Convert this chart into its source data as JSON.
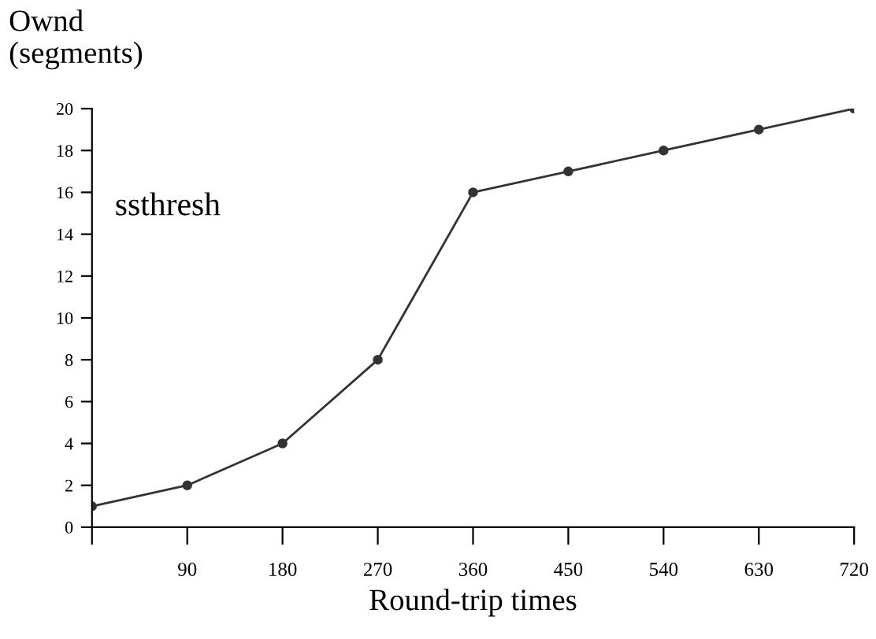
{
  "chart_data": {
    "type": "line",
    "ylabel": "Ownd\n(segments)",
    "xlabel": "Round-trip times",
    "annotations": [
      "ssthresh"
    ],
    "x": [
      0,
      90,
      180,
      270,
      360,
      450,
      540,
      630,
      720
    ],
    "series": [
      {
        "color": "#333333",
        "values": [
          1,
          2,
          4,
          8,
          16,
          17,
          18,
          19,
          20
        ]
      }
    ],
    "xlim": [
      0,
      720
    ],
    "ylim": [
      0,
      20
    ],
    "xticks": [
      {
        "value": 0,
        "label": null
      },
      90,
      180,
      270,
      360,
      450,
      540,
      630,
      720
    ],
    "yticks": [
      0,
      2,
      4,
      6,
      8,
      10,
      12,
      14,
      16,
      18,
      20
    ],
    "grid": false,
    "legend": false,
    "marker": "circle",
    "line_style": "solid"
  }
}
